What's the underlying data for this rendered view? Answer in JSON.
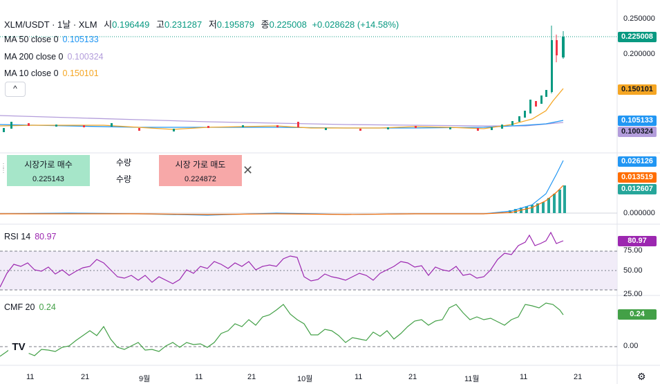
{
  "header": {
    "symbol": "XLM/USDT · 1날 · XLM",
    "open_label": "시",
    "open": "0.196449",
    "high_label": "고",
    "high": "0.231287",
    "low_label": "저",
    "low": "0.195879",
    "close_label": "종",
    "close": "0.225008",
    "change": "+0.028628 (+14.58%)"
  },
  "indicators": {
    "ma50": {
      "label": "MA 50 close 0",
      "value": "0.105133",
      "color": "#2196f3"
    },
    "ma200": {
      "label": "MA 200 close 0",
      "value": "0.100324",
      "color": "#b39ddb"
    },
    "ma10": {
      "label": "MA 10 close 0",
      "value": "0.150101",
      "color": "#f5a623"
    },
    "collapse_icon": "^"
  },
  "trade_panel": {
    "buy_label": "시장가로 매수",
    "buy_value": "0.225143",
    "qty_label_1": "수량",
    "qty_label_2": "수량",
    "sell_label": "시장 가로 매도",
    "sell_value": "0.224872",
    "close_icon": "✕"
  },
  "price_scale": {
    "ticks": [
      "0.250000",
      "0.200000"
    ],
    "badges": [
      {
        "text": "0.225008",
        "color": "#089981"
      },
      {
        "text": "0.150101",
        "color": "#f5a623"
      },
      {
        "text": "0.105133",
        "color": "#2196f3"
      },
      {
        "text": "0.100324",
        "color": "#b39ddb"
      }
    ]
  },
  "macd_scale": {
    "ticks": [
      "0.000000"
    ],
    "badges": [
      {
        "text": "0.026126",
        "color": "#2196f3"
      },
      {
        "text": "0.013519",
        "color": "#ff6d00"
      },
      {
        "text": "0.012607",
        "color": "#26a69a"
      }
    ]
  },
  "rsi": {
    "label": "RSI 14",
    "value": "80.97",
    "ticks": [
      "75.00",
      "50.00",
      "25.00"
    ],
    "color": "#9c27b0"
  },
  "cmf": {
    "label": "CMF 20",
    "value": "0.24",
    "ticks": [
      "0.00"
    ],
    "color": "#43a047"
  },
  "x_axis": [
    "11",
    "21",
    "9월",
    "11",
    "21",
    "10월",
    "11",
    "21",
    "11월",
    "11",
    "21"
  ],
  "logo": "TV",
  "settings_icon": "⚙"
}
